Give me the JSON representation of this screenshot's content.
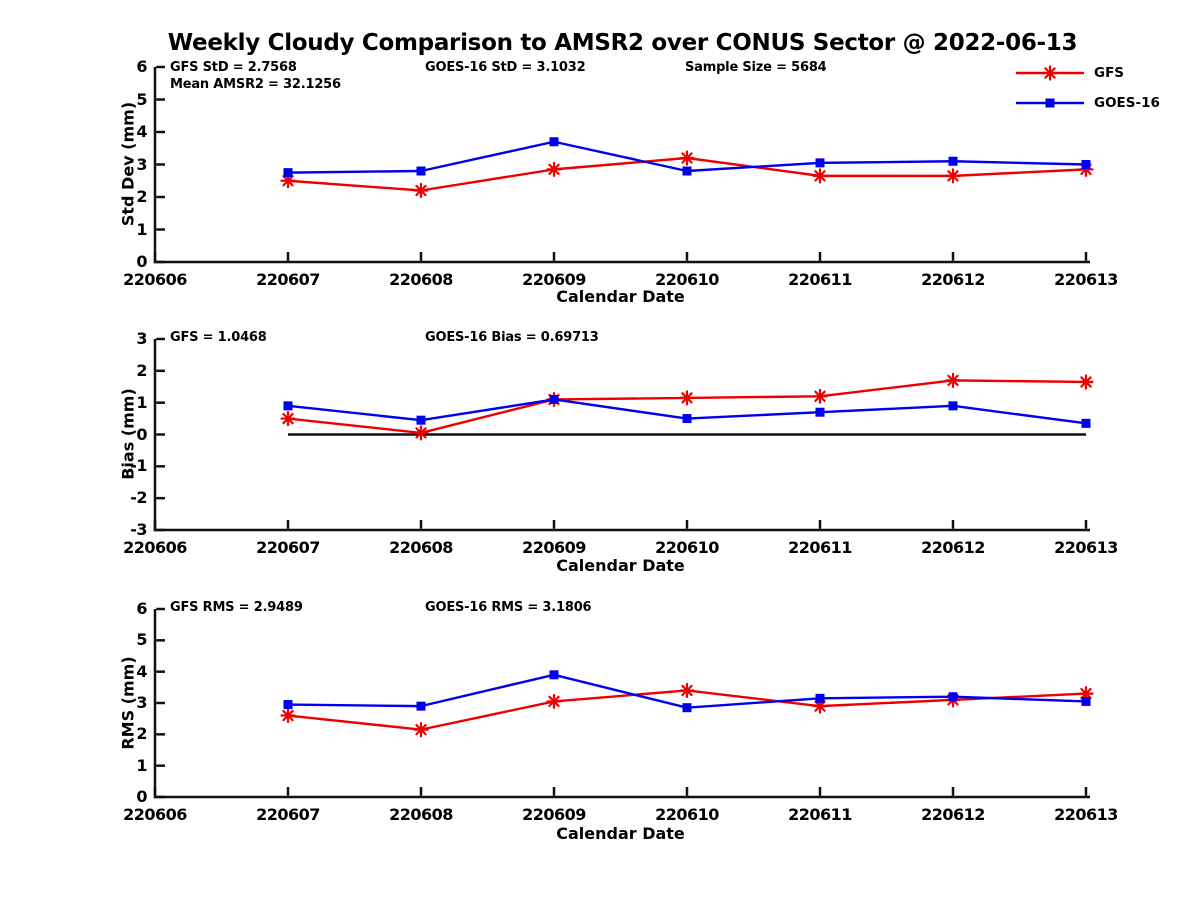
{
  "title": "Weekly Cloudy Comparison to AMSR2 over CONUS Sector @ 2022-06-13",
  "legend": {
    "items": [
      {
        "label": "GFS",
        "color": "#ee0000",
        "marker": "asterisk"
      },
      {
        "label": "GOES-16",
        "color": "#0000ee",
        "marker": "square"
      }
    ]
  },
  "colors": {
    "gfs": "#ee0000",
    "goes16": "#0000ee",
    "axis": "#111111",
    "baseline": "#111111"
  },
  "chart_data": [
    {
      "type": "line",
      "name": "std-dev",
      "ylabel": "Std Dev (mm)",
      "xlabel": "Calendar Date",
      "ylim": [
        0,
        6
      ],
      "yticks": [
        0,
        1,
        2,
        3,
        4,
        5,
        6
      ],
      "categories": [
        "220606",
        "220607",
        "220608",
        "220609",
        "220610",
        "220611",
        "220612",
        "220613"
      ],
      "annotations": [
        "GFS StD = 2.7568",
        "GOES-16 StD = 3.1032",
        "Sample Size = 5684",
        "Mean AMSR2 = 32.1256"
      ],
      "legend_position": "top-right",
      "grid": false,
      "series": [
        {
          "name": "GFS",
          "color": "#ee0000",
          "marker": "asterisk",
          "x": [
            "220607",
            "220608",
            "220609",
            "220610",
            "220611",
            "220612",
            "220613"
          ],
          "values": [
            2.5,
            2.2,
            2.85,
            3.2,
            2.65,
            2.65,
            2.85
          ]
        },
        {
          "name": "GOES-16",
          "color": "#0000ee",
          "marker": "square",
          "x": [
            "220607",
            "220608",
            "220609",
            "220610",
            "220611",
            "220612",
            "220613"
          ],
          "values": [
            2.75,
            2.8,
            3.7,
            2.8,
            3.05,
            3.1,
            3.0
          ]
        }
      ]
    },
    {
      "type": "line",
      "name": "bias",
      "ylabel": "Bias (mm)",
      "xlabel": "Calendar Date",
      "ylim": [
        -3,
        3
      ],
      "yticks": [
        3,
        2,
        1,
        0,
        -1,
        -2,
        -3
      ],
      "baseline": 0,
      "categories": [
        "220606",
        "220607",
        "220608",
        "220609",
        "220610",
        "220611",
        "220612",
        "220613"
      ],
      "annotations": [
        "GFS = 1.0468",
        "GOES-16 Bias  = 0.69713"
      ],
      "grid": false,
      "series": [
        {
          "name": "GFS",
          "color": "#ee0000",
          "marker": "asterisk",
          "x": [
            "220607",
            "220608",
            "220609",
            "220610",
            "220611",
            "220612",
            "220613"
          ],
          "values": [
            0.5,
            0.05,
            1.1,
            1.15,
            1.2,
            1.7,
            1.65
          ]
        },
        {
          "name": "GOES-16",
          "color": "#0000ee",
          "marker": "square",
          "x": [
            "220607",
            "220608",
            "220609",
            "220610",
            "220611",
            "220612",
            "220613"
          ],
          "values": [
            0.9,
            0.45,
            1.1,
            0.5,
            0.7,
            0.9,
            0.35
          ]
        }
      ]
    },
    {
      "type": "line",
      "name": "rms",
      "ylabel": "RMS (mm)",
      "xlabel": "Calendar Date",
      "ylim": [
        0,
        6
      ],
      "yticks": [
        0,
        1,
        2,
        3,
        4,
        5,
        6
      ],
      "categories": [
        "220606",
        "220607",
        "220608",
        "220609",
        "220610",
        "220611",
        "220612",
        "220613"
      ],
      "annotations": [
        "GFS RMS = 2.9489",
        "GOES-16 RMS = 3.1806"
      ],
      "grid": false,
      "series": [
        {
          "name": "GFS",
          "color": "#ee0000",
          "marker": "asterisk",
          "x": [
            "220607",
            "220608",
            "220609",
            "220610",
            "220611",
            "220612",
            "220613"
          ],
          "values": [
            2.6,
            2.15,
            3.05,
            3.4,
            2.9,
            3.1,
            3.3
          ]
        },
        {
          "name": "GOES-16",
          "color": "#0000ee",
          "marker": "square",
          "x": [
            "220607",
            "220608",
            "220609",
            "220610",
            "220611",
            "220612",
            "220613"
          ],
          "values": [
            2.95,
            2.9,
            3.9,
            2.85,
            3.15,
            3.2,
            3.05
          ]
        }
      ]
    }
  ]
}
